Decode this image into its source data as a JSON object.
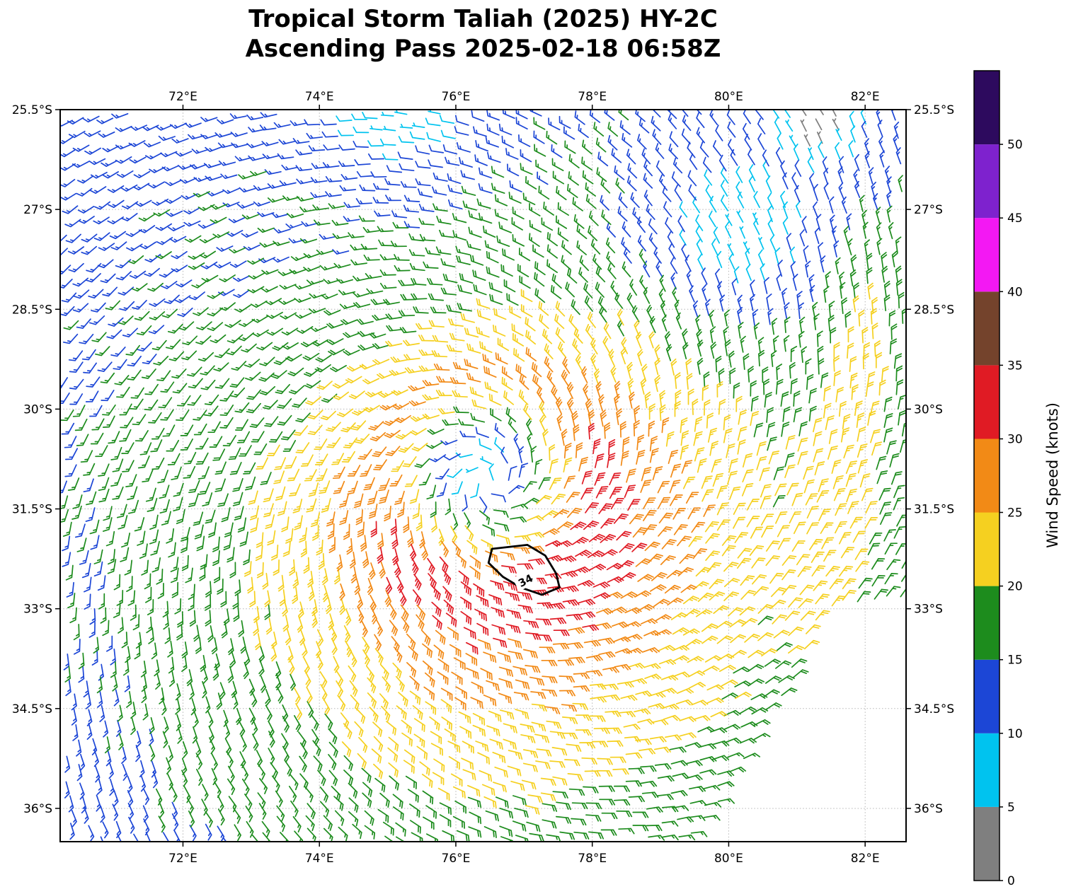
{
  "title": {
    "line1": "Tropical Storm Taliah (2025) HY-2C",
    "line2": "Ascending Pass 2025-02-18 06:58Z"
  },
  "chart_data": {
    "type": "wind_barb_vector_field",
    "title": "Tropical Storm Taliah (2025) HY-2C",
    "subtitle": "Ascending Pass 2025-02-18 06:58Z",
    "x_axis": {
      "ticks": [
        72,
        74,
        76,
        78,
        80,
        82
      ],
      "tick_labels": [
        "72°E",
        "74°E",
        "76°E",
        "78°E",
        "80°E",
        "82°E"
      ],
      "range_deg_e": [
        70.2,
        82.6
      ],
      "grid": "dotted"
    },
    "y_axis": {
      "ticks": [
        25.5,
        27,
        28.5,
        30,
        31.5,
        33,
        34.5,
        36
      ],
      "tick_labels": [
        "25.5°S",
        "27°S",
        "28.5°S",
        "30°S",
        "31.5°S",
        "33°S",
        "34.5°S",
        "36°S"
      ],
      "range_deg_s": [
        25.5,
        36.5
      ],
      "grid": "dotted"
    },
    "colorbar": {
      "label": "Wind Speed (knots)",
      "tick_labels": [
        "0",
        "5",
        "10",
        "15",
        "20",
        "25",
        "30",
        "35",
        "40",
        "45",
        "50"
      ],
      "level_bounds_knots": [
        0,
        5,
        10,
        15,
        20,
        25,
        30,
        35,
        40,
        45,
        50,
        55
      ],
      "colors": [
        "#7f7f7f",
        "#00c3ef",
        "#1c46d6",
        "#1d8c1d",
        "#f5d020",
        "#f28a16",
        "#e01b24",
        "#74432c",
        "#f318f3",
        "#7e22ce",
        "#2d0a5e"
      ]
    },
    "storm_center": {
      "lon_e": 76.5,
      "lat_s": 31.1
    },
    "contour_34kt": {
      "label": "34",
      "points_lon_s": [
        [
          76.53,
          32.1
        ],
        [
          77.05,
          32.04
        ],
        [
          77.31,
          32.2
        ],
        [
          77.47,
          32.47
        ],
        [
          77.52,
          32.68
        ],
        [
          77.26,
          32.79
        ],
        [
          76.95,
          32.68
        ],
        [
          76.69,
          32.52
        ],
        [
          76.48,
          32.31
        ]
      ],
      "label_pos": [
        77.02,
        32.57
      ]
    },
    "wind_model": {
      "center": {
        "lon": 76.5,
        "s": 31.1
      },
      "eye_kt": 9,
      "eye_r": 0.22,
      "rmax_deg": 1.6,
      "vmax_kt": 32,
      "decay_exp": 0.55,
      "asym_amp_kt": 5,
      "asym_dir": [
        0.35,
        -0.85
      ],
      "asym_r": 2.2,
      "asym_w": 3.0,
      "inflow": 0.35,
      "cap_kt": 34.4,
      "suppress": [
        {
          "lon": 75.3,
          "s": 25.4,
          "amp": 9,
          "sig": 1.1
        },
        {
          "lon": 80.1,
          "s": 27.4,
          "amp": 9,
          "sig": 1.3
        },
        {
          "lon": 81.35,
          "s": 25.7,
          "amp": 13,
          "sig": 0.55
        }
      ],
      "band": {
        "lon0": 81.35,
        "s0": 33.4,
        "slope": 0.14,
        "amp": 6.5,
        "sig": 0.55,
        "s_center": 30.6,
        "s_width": 3.4
      },
      "nodata": {
        "s_min": 33.0,
        "lon0": 79.6,
        "slope": 0.55
      }
    },
    "barb": {
      "staff": 17,
      "full": 8.5,
      "half": 4.5,
      "space": 3.4,
      "angle_deg": 60,
      "width": 1.7,
      "spacing_deg": 0.215,
      "grid_rot_deg": -6
    }
  }
}
